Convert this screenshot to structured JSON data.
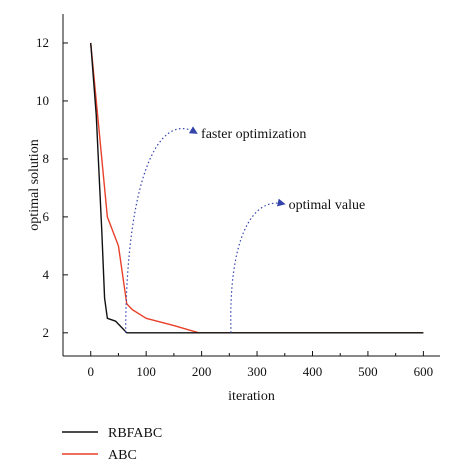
{
  "chart_data": {
    "type": "line",
    "xlabel": "iteration",
    "ylabel": "optimal solution",
    "xlim": [
      -50,
      630
    ],
    "ylim": [
      1.2,
      13.0
    ],
    "xticks": [
      0,
      100,
      200,
      300,
      400,
      500,
      600
    ],
    "yticks": [
      2,
      4,
      6,
      8,
      10,
      12
    ],
    "grid": false,
    "legend_position": "bottom-left",
    "series": [
      {
        "name": "RBFABC",
        "color": "#111111",
        "x": [
          0,
          10,
          20,
          25,
          30,
          45,
          55,
          65,
          75,
          100,
          200,
          300,
          400,
          500,
          600
        ],
        "y": [
          12,
          9.5,
          5.5,
          3.2,
          2.5,
          2.4,
          2.2,
          2.0,
          2.0,
          2.0,
          2.0,
          2.0,
          2.0,
          2.0,
          2.0
        ]
      },
      {
        "name": "ABC",
        "color": "#e8402a",
        "x": [
          0,
          30,
          50,
          65,
          75,
          100,
          150,
          195,
          250,
          300,
          400,
          500,
          600
        ],
        "y": [
          12,
          6.0,
          5.0,
          3.0,
          2.8,
          2.5,
          2.25,
          2.0,
          2.0,
          2.0,
          2.0,
          2.0,
          2.0
        ]
      }
    ],
    "annotations": [
      {
        "text": "faster optimization",
        "color": "#3344aa",
        "path": [
          [
            63,
            2.0
          ],
          [
            64,
            7.2
          ],
          [
            120,
            9.7
          ],
          [
            190,
            8.9
          ]
        ]
      },
      {
        "text": "optimal value",
        "color": "#3344aa",
        "path": [
          [
            253,
            2.0
          ],
          [
            248,
            5.2
          ],
          [
            290,
            6.7
          ],
          [
            348,
            6.45
          ]
        ]
      }
    ]
  }
}
